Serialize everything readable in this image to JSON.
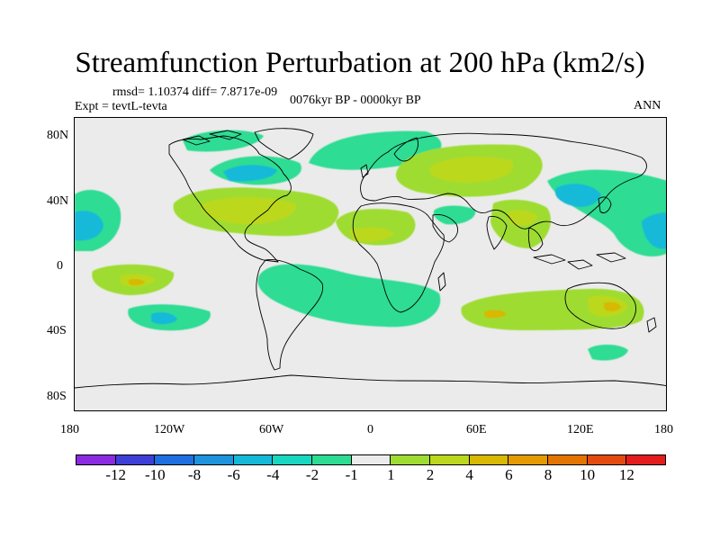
{
  "header": {
    "title": "Streamfunction Perturbation at 200 hPa (km2/s)",
    "rmsd_line": "rmsd= 1.10374 diff= 7.8717e-09",
    "period": "0076kyr BP - 0000kyr BP",
    "experiment": "Expt = tevtL-tevta",
    "season": "ANN"
  },
  "map": {
    "projection": "cylindrical equidistant",
    "lon_range": [
      -180,
      180
    ],
    "lat_range": [
      -90,
      90
    ],
    "background_color": "#ebebeb",
    "coastline_color": "#000000",
    "lat_ticks": [
      "80N",
      "40N",
      "0",
      "40S",
      "80S"
    ],
    "lon_ticks": [
      "180",
      "120W",
      "60W",
      "0",
      "60E",
      "120E",
      "180"
    ]
  },
  "colorbar": {
    "colors": [
      "#8a2be2",
      "#3e3fd6",
      "#1e6fe0",
      "#1c93dc",
      "#14b9d8",
      "#18d7c0",
      "#2ddc93",
      "#ebebeb",
      "#9edc32",
      "#bcd81c",
      "#d8b800",
      "#e49a00",
      "#e47400",
      "#e44a10",
      "#e41c1c"
    ],
    "labels": [
      "-12",
      "-10",
      "-8",
      "-6",
      "-4",
      "-2",
      "-1",
      "1",
      "2",
      "4",
      "6",
      "8",
      "10",
      "12"
    ]
  }
}
